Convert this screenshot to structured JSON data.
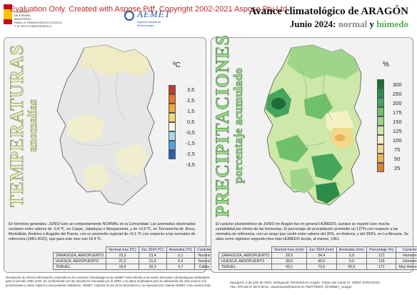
{
  "header": {
    "watermark": "Evaluation Only. Created with Aspose.Pdf. Copyright 2002-2021 Aspose Pty Ltd.",
    "title": "Avance climatológico de ARAGÓN",
    "subtitle_prefix": "Junio 2024:",
    "subtitle_normal": "normal",
    "subtitle_and": "y",
    "subtitle_humid": "húmedo",
    "gov_lines": [
      "GOBIERNO",
      "DE ESPAÑA",
      "MINISTERIO",
      "PARA LA TRANSICIÓN ECOLÓGICA",
      "Y EL RETO DEMOGRÁFICO"
    ],
    "agency_name": "AEMET",
    "agency_sub": "Agencia Estatal de Meteorología"
  },
  "temperature": {
    "title": "TEMPERATURAS",
    "subtitle": "anomalías",
    "unit": "ºC",
    "legend": [
      {
        "label": "3,5",
        "color": "#c0392b"
      },
      {
        "label": "2,5",
        "color": "#e8762b"
      },
      {
        "label": "1,5",
        "color": "#f4a73c"
      },
      {
        "label": "0,5",
        "color": "#f4dc6a"
      },
      {
        "label": "-0,5",
        "color": "#f7f7e6"
      },
      {
        "label": "-1,5",
        "color": "#a8d8ef"
      },
      {
        "label": "-2,5",
        "color": "#4ea3dc"
      },
      {
        "label": "-3,5",
        "color": "#2d5fb8"
      }
    ],
    "description": "En términos generales, JUNIO tuvo un comportamiento NORMAL en la Comunidad. Las anomalías observadas oscilaron entre valores de -0,4 ºC, en Caspe, Jabaloyas o Mosqueruela, y de +0,9 ºC, en Torremocha de Jiloca, Montalbán, Andorra o Aragüés del Puerto, con un promedio regional de +0,1 ºC con respecto a las normales de referencia (1991-2020), que para este mes son 19,4 ºC.",
    "table": {
      "headers": [
        "",
        "Normal mes (ºC)",
        "Jun 2024 (ºC)",
        "Anomalía (ºC)",
        "Carácter"
      ],
      "rows": [
        [
          "ZARAGOZA, AEROPUERTO",
          "23,3",
          "23,4",
          "0,1",
          "Normal"
        ],
        [
          "HUESCA, AEROPUERTO",
          "21,2",
          "21,6",
          "0,4",
          "Normal"
        ],
        [
          "TERUEL",
          "19,6",
          "20,3",
          "0,7",
          "Cálido"
        ]
      ]
    }
  },
  "precipitation": {
    "title": "PRECIPITACIONES",
    "subtitle": "porcentaje acumulado",
    "unit": "%",
    "legend": [
      {
        "label": "300",
        "color": "#1f6b3a"
      },
      {
        "label": "250",
        "color": "#2e8b4a"
      },
      {
        "label": "200",
        "color": "#45a55c"
      },
      {
        "label": "175",
        "color": "#6fbf6b"
      },
      {
        "label": "150",
        "color": "#9ed58a"
      },
      {
        "label": "125",
        "color": "#cde8a8"
      },
      {
        "label": "100",
        "color": "#f3f1c6"
      },
      {
        "label": "75",
        "color": "#f2d88a"
      },
      {
        "label": "50",
        "color": "#e9b15a"
      },
      {
        "label": "25",
        "color": "#d9822b"
      }
    ],
    "description": "El carácter pluviométrico de JUNIO en Aragón fue en general HÚMEDO, aunque se reparte tuvo mucha variabilidad por efecto de las tormentas. El porcentaje de precipitación promedio un 127% con respecto a las normales de referencia, con un rango que osciló entre valores del 20%, en Andorra, y del 393%, en La Almunia. Se sitúa como vigésimo segundo mes más HÚMEDO desde, al menos, 1961.",
    "table": {
      "headers": [
        "",
        "Normal mes (mm)",
        "Jun 2024 (mm)",
        "Anomalía (mm)",
        "Porcentaje (%)",
        "Carácter"
      ],
      "rows": [
        [
          "ZARAGOZA, AEROPUERTO",
          "28,5",
          "34,4",
          "5,9",
          "121",
          "Húmedo"
        ],
        [
          "HUESCA, AEROPUERTO",
          "36,6",
          "45,6",
          "9,0",
          "125",
          "Húmedo"
        ],
        [
          "TERUEL",
          "43,1",
          "73,6",
          "30,5",
          "171",
          "Muy Húmedo"
        ]
      ]
    }
  },
  "footer": {
    "disclaimer": "Resolución de 2023 la información contenida en los Avances Climatológicos de AEMET está referida a las series Normales Climatológicas Estándares para el periodo 1991-2020, de conformidad con las directrices marcadas por la OMM. Los datos empleados para la elaboración de este avance son provisionales y están sujetos a una posterior validación. AEMET: Autoriza el uso de la información y su reproducción citando AEMET como autora esta.",
    "contact_line1": "Zaragoza, 5 de julio de 2024. Delegación Territorial en Aragón. Paseo del Canal 17. 50007 ZARAGOZA",
    "contact_line2": "TEL. 976 56 97 38 E-MAIL: usuariosara@aemet.es TWITTER/X: @AEMET_Aragon"
  }
}
